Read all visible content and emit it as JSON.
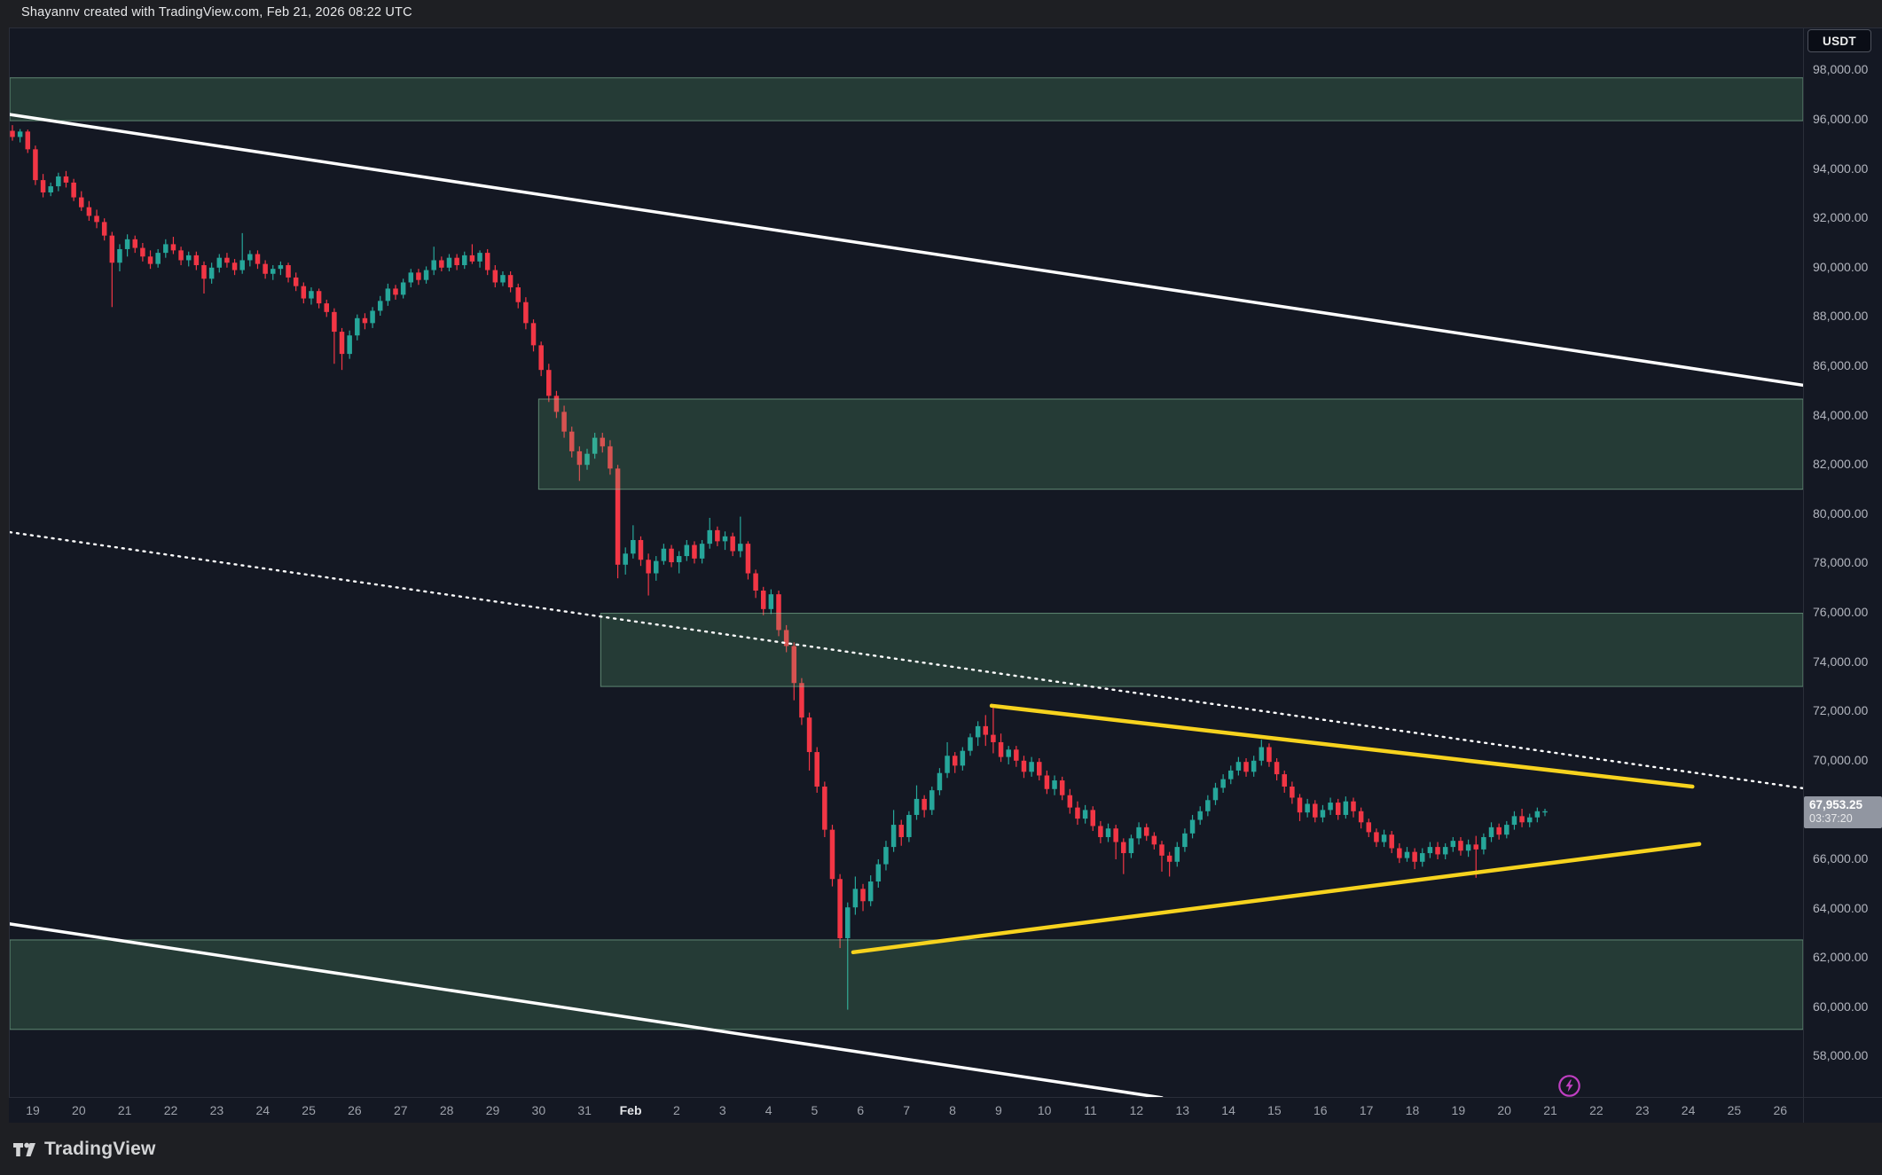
{
  "watermark": "Shayannv created with TradingView.com, Feb 21, 2026 08:22 UTC",
  "symbol_badge": "USDT",
  "logo_text": "TradingView",
  "price_label": {
    "price": "67,953.25",
    "countdown": "03:37:20",
    "value": 67953.25
  },
  "colors": {
    "chart_bg": "#141823",
    "outer_bg": "#1e1f23",
    "frame": "#2a2e39",
    "axis_text": "#b2b5be",
    "up": "#26a69a",
    "down": "#f23645",
    "zone_fill": "rgba(106,200,129,0.20)",
    "zone_border": "rgba(150,212,172,0.55)",
    "trendline_white": "#ffffff",
    "trendline_yellow": "#f7d31e",
    "price_badge_bg": "#9196a1",
    "lightning": "#c03fc2"
  },
  "price_axis": {
    "labels": [
      "98,000.00",
      "96,000.00",
      "94,000.00",
      "92,000.00",
      "90,000.00",
      "88,000.00",
      "86,000.00",
      "84,000.00",
      "82,000.00",
      "80,000.00",
      "78,000.00",
      "76,000.00",
      "74,000.00",
      "72,000.00",
      "70,000.00",
      "68,000.00",
      "66,000.00",
      "64,000.00",
      "62,000.00",
      "60,000.00",
      "58,000.00"
    ],
    "values": [
      98000,
      96000,
      94000,
      92000,
      90000,
      88000,
      86000,
      84000,
      82000,
      80000,
      78000,
      76000,
      74000,
      72000,
      70000,
      68000,
      66000,
      64000,
      62000,
      60000,
      58000
    ]
  },
  "time_axis": {
    "labels": [
      "19",
      "20",
      "21",
      "22",
      "23",
      "24",
      "25",
      "26",
      "27",
      "28",
      "29",
      "30",
      "31",
      "Feb",
      "2",
      "3",
      "4",
      "5",
      "6",
      "7",
      "8",
      "9",
      "10",
      "11",
      "12",
      "13",
      "14",
      "15",
      "16",
      "17",
      "18",
      "19",
      "20",
      "21",
      "22",
      "23",
      "24",
      "25",
      "26"
    ],
    "month_index": 13
  },
  "chart_data": {
    "type": "candlestick",
    "timeframe": "4h",
    "quote_currency": "USDT",
    "date_range": "Jan 19 - Feb 26 (candles through Feb 21 08:00 UTC)",
    "last_price": 67953.25,
    "countdown": "03:37:20",
    "price_unit": 1000,
    "ylim": [
      56.4,
      99.7
    ],
    "grid": false,
    "candles": [
      [
        95.55,
        95.78,
        95.15,
        95.3
      ],
      [
        95.3,
        95.62,
        95.08,
        95.52
      ],
      [
        95.52,
        95.6,
        94.65,
        94.8
      ],
      [
        94.8,
        94.95,
        93.35,
        93.55
      ],
      [
        93.55,
        93.8,
        92.85,
        93.05
      ],
      [
        93.05,
        93.45,
        92.9,
        93.3
      ],
      [
        93.3,
        93.85,
        93.1,
        93.7
      ],
      [
        93.7,
        93.92,
        93.25,
        93.45
      ],
      [
        93.45,
        93.6,
        92.7,
        92.85
      ],
      [
        92.85,
        93.1,
        92.3,
        92.45
      ],
      [
        92.45,
        92.7,
        91.9,
        92.1
      ],
      [
        92.1,
        92.35,
        91.6,
        91.85
      ],
      [
        91.85,
        92.0,
        91.1,
        91.3
      ],
      [
        91.3,
        91.45,
        88.4,
        90.2
      ],
      [
        90.2,
        90.95,
        89.85,
        90.75
      ],
      [
        90.75,
        91.35,
        90.45,
        91.15
      ],
      [
        91.15,
        91.3,
        90.6,
        90.8
      ],
      [
        90.8,
        91.0,
        90.25,
        90.45
      ],
      [
        90.45,
        90.7,
        89.95,
        90.15
      ],
      [
        90.15,
        90.75,
        90.0,
        90.6
      ],
      [
        90.6,
        91.15,
        90.4,
        90.95
      ],
      [
        90.95,
        91.25,
        90.55,
        90.7
      ],
      [
        90.7,
        90.85,
        90.1,
        90.3
      ],
      [
        90.3,
        90.65,
        90.05,
        90.5
      ],
      [
        90.5,
        90.65,
        89.9,
        90.1
      ],
      [
        90.1,
        90.25,
        88.95,
        89.55
      ],
      [
        89.55,
        90.2,
        89.35,
        90.0
      ],
      [
        90.0,
        90.55,
        89.8,
        90.4
      ],
      [
        90.4,
        90.6,
        90.0,
        90.2
      ],
      [
        90.2,
        90.35,
        89.7,
        89.9
      ],
      [
        89.9,
        91.4,
        89.75,
        90.3
      ],
      [
        90.3,
        90.7,
        90.05,
        90.55
      ],
      [
        90.55,
        90.7,
        89.95,
        90.15
      ],
      [
        90.15,
        90.3,
        89.55,
        89.75
      ],
      [
        89.75,
        90.1,
        89.5,
        89.95
      ],
      [
        89.95,
        90.25,
        89.7,
        90.1
      ],
      [
        90.1,
        90.2,
        89.4,
        89.6
      ],
      [
        89.6,
        89.8,
        89.05,
        89.25
      ],
      [
        89.25,
        89.4,
        88.55,
        88.75
      ],
      [
        88.75,
        89.2,
        88.5,
        89.05
      ],
      [
        89.05,
        89.15,
        88.35,
        88.55
      ],
      [
        88.55,
        88.7,
        88.0,
        88.2
      ],
      [
        88.2,
        88.35,
        86.1,
        87.4
      ],
      [
        87.4,
        87.55,
        85.85,
        86.5
      ],
      [
        86.5,
        87.45,
        86.3,
        87.25
      ],
      [
        87.25,
        88.1,
        87.05,
        87.95
      ],
      [
        87.95,
        88.15,
        87.5,
        87.75
      ],
      [
        87.75,
        88.4,
        87.55,
        88.25
      ],
      [
        88.25,
        88.85,
        88.05,
        88.65
      ],
      [
        88.65,
        89.35,
        88.45,
        89.15
      ],
      [
        89.15,
        89.3,
        88.7,
        88.9
      ],
      [
        88.9,
        89.55,
        88.75,
        89.4
      ],
      [
        89.4,
        89.95,
        89.2,
        89.8
      ],
      [
        89.8,
        89.95,
        89.3,
        89.5
      ],
      [
        89.5,
        90.05,
        89.35,
        89.9
      ],
      [
        89.9,
        90.85,
        89.7,
        90.3
      ],
      [
        90.3,
        90.45,
        89.85,
        90.0
      ],
      [
        90.0,
        90.55,
        89.85,
        90.4
      ],
      [
        90.4,
        90.55,
        89.9,
        90.1
      ],
      [
        90.1,
        90.65,
        89.95,
        90.5
      ],
      [
        90.5,
        90.95,
        90.15,
        90.25
      ],
      [
        90.25,
        90.7,
        90.0,
        90.6
      ],
      [
        90.6,
        90.75,
        89.7,
        89.9
      ],
      [
        89.9,
        90.1,
        89.2,
        89.4
      ],
      [
        89.4,
        89.85,
        89.25,
        89.7
      ],
      [
        89.7,
        89.85,
        89.0,
        89.2
      ],
      [
        89.2,
        89.35,
        88.35,
        88.6
      ],
      [
        88.6,
        88.8,
        87.5,
        87.75
      ],
      [
        87.75,
        87.9,
        86.6,
        86.85
      ],
      [
        86.85,
        87.0,
        85.6,
        85.85
      ],
      [
        85.85,
        86.1,
        84.55,
        84.8
      ],
      [
        84.8,
        85.0,
        83.9,
        84.15
      ],
      [
        84.15,
        84.4,
        83.1,
        83.35
      ],
      [
        83.35,
        83.55,
        82.3,
        82.55
      ],
      [
        82.55,
        82.75,
        81.35,
        82.0
      ],
      [
        82.0,
        82.65,
        81.8,
        82.45
      ],
      [
        82.45,
        83.3,
        82.25,
        83.1
      ],
      [
        83.1,
        83.3,
        82.5,
        82.75
      ],
      [
        82.75,
        83.0,
        81.6,
        81.85
      ],
      [
        81.85,
        82.0,
        77.4,
        77.95
      ],
      [
        77.95,
        78.65,
        77.55,
        78.4
      ],
      [
        78.4,
        79.55,
        78.2,
        78.95
      ],
      [
        78.95,
        79.1,
        77.9,
        78.15
      ],
      [
        78.15,
        78.4,
        76.7,
        77.6
      ],
      [
        77.6,
        78.3,
        77.3,
        78.1
      ],
      [
        78.1,
        78.8,
        77.95,
        78.6
      ],
      [
        78.6,
        78.75,
        77.85,
        78.05
      ],
      [
        78.05,
        78.5,
        77.6,
        78.3
      ],
      [
        78.3,
        78.95,
        78.1,
        78.75
      ],
      [
        78.75,
        78.9,
        78.0,
        78.2
      ],
      [
        78.2,
        78.95,
        78.0,
        78.8
      ],
      [
        78.8,
        79.85,
        78.6,
        79.35
      ],
      [
        79.35,
        79.5,
        78.7,
        78.9
      ],
      [
        78.9,
        79.3,
        78.55,
        79.1
      ],
      [
        79.1,
        79.25,
        78.3,
        78.5
      ],
      [
        78.5,
        79.9,
        78.25,
        78.8
      ],
      [
        78.8,
        78.9,
        77.35,
        77.6
      ],
      [
        77.6,
        77.75,
        76.6,
        76.9
      ],
      [
        76.9,
        77.05,
        75.9,
        76.15
      ],
      [
        76.15,
        76.95,
        75.95,
        76.75
      ],
      [
        76.75,
        76.9,
        75.05,
        75.3
      ],
      [
        75.3,
        75.5,
        74.4,
        74.65
      ],
      [
        74.65,
        74.8,
        72.45,
        73.15
      ],
      [
        73.15,
        73.35,
        71.45,
        71.75
      ],
      [
        71.75,
        71.95,
        69.6,
        70.35
      ],
      [
        70.35,
        70.55,
        68.7,
        68.95
      ],
      [
        68.95,
        69.15,
        66.9,
        67.2
      ],
      [
        67.2,
        67.4,
        64.9,
        65.2
      ],
      [
        65.2,
        65.4,
        62.4,
        62.8
      ],
      [
        62.8,
        64.25,
        59.9,
        64.05
      ],
      [
        64.05,
        65.3,
        63.75,
        64.8
      ],
      [
        64.8,
        65.0,
        63.9,
        64.3
      ],
      [
        64.3,
        65.35,
        64.1,
        65.1
      ],
      [
        65.1,
        66.0,
        64.85,
        65.8
      ],
      [
        65.8,
        66.75,
        65.55,
        66.5
      ],
      [
        66.5,
        68.0,
        66.3,
        67.4
      ],
      [
        67.4,
        67.6,
        66.55,
        66.9
      ],
      [
        66.9,
        67.95,
        66.7,
        67.8
      ],
      [
        67.8,
        69.0,
        67.6,
        68.45
      ],
      [
        68.45,
        68.6,
        67.7,
        68.0
      ],
      [
        68.0,
        68.95,
        67.8,
        68.8
      ],
      [
        68.8,
        69.7,
        68.6,
        69.5
      ],
      [
        69.5,
        70.75,
        69.3,
        70.2
      ],
      [
        70.2,
        70.35,
        69.5,
        69.8
      ],
      [
        69.8,
        70.55,
        69.6,
        70.4
      ],
      [
        70.4,
        71.1,
        70.2,
        70.95
      ],
      [
        70.95,
        71.6,
        70.6,
        71.4
      ],
      [
        71.4,
        71.85,
        70.6,
        71.05
      ],
      [
        71.05,
        72.25,
        70.3,
        70.75
      ],
      [
        70.75,
        71.1,
        69.95,
        70.15
      ],
      [
        70.15,
        70.6,
        69.85,
        70.45
      ],
      [
        70.45,
        70.6,
        69.75,
        70.0
      ],
      [
        70.0,
        70.2,
        69.3,
        69.55
      ],
      [
        69.55,
        70.15,
        69.35,
        69.95
      ],
      [
        69.95,
        70.1,
        69.2,
        69.4
      ],
      [
        69.4,
        69.6,
        68.65,
        68.85
      ],
      [
        68.85,
        69.4,
        68.6,
        69.2
      ],
      [
        69.2,
        69.35,
        68.4,
        68.6
      ],
      [
        68.6,
        68.85,
        67.85,
        68.1
      ],
      [
        68.1,
        68.35,
        67.4,
        67.65
      ],
      [
        67.65,
        68.2,
        67.45,
        68.0
      ],
      [
        68.0,
        68.15,
        67.15,
        67.35
      ],
      [
        67.35,
        67.55,
        66.65,
        66.9
      ],
      [
        66.9,
        67.45,
        66.7,
        67.25
      ],
      [
        67.25,
        67.4,
        66.0,
        66.7
      ],
      [
        66.7,
        66.85,
        65.4,
        66.25
      ],
      [
        66.25,
        67.0,
        66.05,
        66.85
      ],
      [
        66.85,
        67.5,
        66.6,
        67.3
      ],
      [
        67.3,
        67.45,
        66.75,
        66.95
      ],
      [
        66.95,
        67.1,
        66.4,
        66.6
      ],
      [
        66.6,
        66.75,
        65.5,
        66.15
      ],
      [
        66.15,
        66.3,
        65.3,
        65.9
      ],
      [
        65.9,
        66.7,
        65.7,
        66.5
      ],
      [
        66.5,
        67.25,
        66.3,
        67.05
      ],
      [
        67.05,
        67.8,
        66.85,
        67.6
      ],
      [
        67.6,
        68.15,
        67.4,
        67.95
      ],
      [
        67.95,
        68.6,
        67.75,
        68.4
      ],
      [
        68.4,
        69.1,
        68.2,
        68.9
      ],
      [
        68.9,
        69.45,
        68.7,
        69.25
      ],
      [
        69.25,
        69.8,
        69.05,
        69.6
      ],
      [
        69.6,
        70.15,
        69.4,
        69.95
      ],
      [
        69.95,
        70.1,
        69.35,
        69.55
      ],
      [
        69.55,
        70.2,
        69.35,
        70.0
      ],
      [
        70.0,
        70.85,
        69.8,
        70.55
      ],
      [
        70.55,
        70.7,
        69.75,
        69.95
      ],
      [
        69.95,
        70.1,
        69.2,
        69.45
      ],
      [
        69.45,
        69.6,
        68.7,
        68.95
      ],
      [
        68.95,
        69.15,
        68.25,
        68.5
      ],
      [
        68.5,
        68.65,
        67.55,
        67.9
      ],
      [
        67.9,
        68.45,
        67.7,
        68.25
      ],
      [
        68.25,
        68.4,
        67.5,
        67.7
      ],
      [
        67.7,
        68.2,
        67.5,
        68.0
      ],
      [
        68.0,
        68.5,
        67.8,
        68.3
      ],
      [
        68.3,
        68.45,
        67.6,
        67.8
      ],
      [
        67.8,
        68.55,
        67.65,
        68.35
      ],
      [
        68.35,
        68.5,
        67.7,
        67.95
      ],
      [
        67.95,
        68.1,
        67.25,
        67.5
      ],
      [
        67.5,
        67.65,
        66.9,
        67.1
      ],
      [
        67.1,
        67.25,
        66.5,
        66.7
      ],
      [
        66.7,
        67.2,
        66.5,
        67.0
      ],
      [
        67.0,
        67.15,
        66.25,
        66.45
      ],
      [
        66.45,
        66.65,
        65.85,
        66.05
      ],
      [
        66.05,
        66.5,
        65.9,
        66.3
      ],
      [
        66.3,
        66.45,
        65.6,
        65.9
      ],
      [
        65.9,
        66.45,
        65.7,
        66.25
      ],
      [
        66.25,
        66.7,
        66.05,
        66.5
      ],
      [
        66.5,
        66.7,
        66.0,
        66.2
      ],
      [
        66.2,
        66.65,
        66.0,
        66.5
      ],
      [
        66.5,
        66.9,
        66.3,
        66.75
      ],
      [
        66.75,
        66.9,
        66.15,
        66.35
      ],
      [
        66.35,
        66.8,
        66.1,
        66.6
      ],
      [
        66.6,
        66.95,
        65.25,
        66.4
      ],
      [
        66.4,
        67.05,
        66.2,
        66.9
      ],
      [
        66.9,
        67.5,
        66.7,
        67.3
      ],
      [
        67.3,
        67.45,
        66.8,
        67.0
      ],
      [
        67.0,
        67.55,
        66.85,
        67.4
      ],
      [
        67.4,
        67.95,
        67.2,
        67.75
      ],
      [
        67.75,
        68.05,
        67.3,
        67.5
      ],
      [
        67.5,
        67.85,
        67.3,
        67.7
      ],
      [
        67.7,
        68.1,
        67.5,
        67.95
      ],
      [
        67.95,
        68.05,
        67.75,
        67.95
      ]
    ],
    "zones": [
      {
        "name": "resistance-zone-96k-97.7k",
        "price_top": 97.7,
        "price_bottom": 95.96,
        "day_start": -0.5,
        "day_end": 38.5
      },
      {
        "name": "supply-zone-81k-84.7k",
        "price_top": 84.67,
        "price_bottom": 81.01,
        "day_start": 11.0,
        "day_end": 38.5
      },
      {
        "name": "supply-zone-73k-76k",
        "price_top": 75.98,
        "price_bottom": 73.01,
        "day_start": 12.35,
        "day_end": 38.5
      },
      {
        "name": "demand-zone-59.1k-62.7k",
        "price_top": 62.73,
        "price_bottom": 59.1,
        "day_start": -0.5,
        "day_end": 38.5
      }
    ],
    "trendlines": [
      {
        "name": "descending-channel-top",
        "style": "solid",
        "color": "#ffffff",
        "width": 3.5,
        "day1": -0.5,
        "price1": 96.21,
        "day2": 38.5,
        "price2": 85.23
      },
      {
        "name": "descending-channel-bottom",
        "style": "solid",
        "color": "#ffffff",
        "width": 3.5,
        "day1": -0.5,
        "price1": 63.38,
        "day2": 24.55,
        "price2": 56.33
      },
      {
        "name": "dotted-resistance-line",
        "style": "dotted",
        "color": "#ffffff",
        "width": 2.4,
        "day1": -0.5,
        "price1": 79.27,
        "day2": 38.5,
        "price2": 68.88
      },
      {
        "name": "triangle-upper-yellow",
        "style": "solid",
        "color": "#f7d31e",
        "width": 4.5,
        "day1": 20.85,
        "price1": 72.23,
        "day2": 36.09,
        "price2": 68.95
      },
      {
        "name": "triangle-lower-yellow",
        "style": "solid",
        "color": "#f7d31e",
        "width": 4.5,
        "day1": 17.84,
        "price1": 62.23,
        "day2": 36.24,
        "price2": 66.62
      }
    ]
  }
}
